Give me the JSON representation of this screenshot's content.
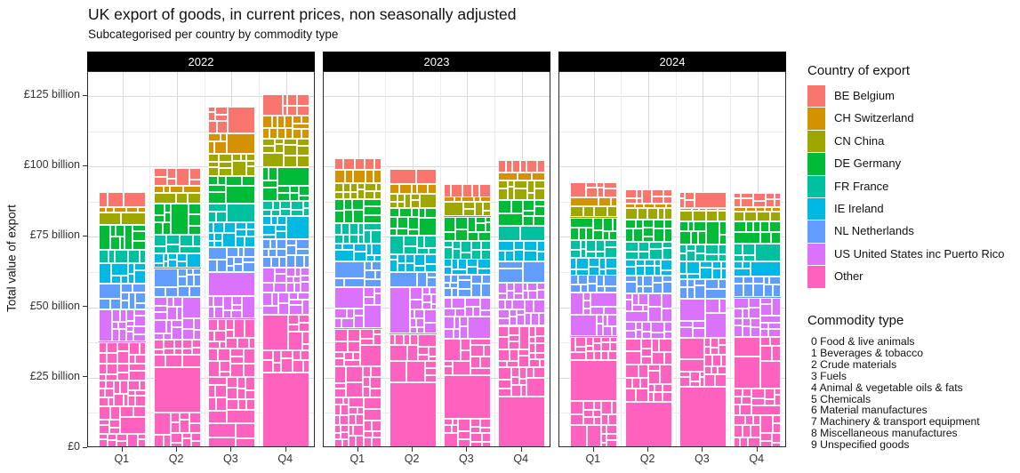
{
  "chart": {
    "title": "UK export of goods, in current prices, non seasonally adjusted",
    "subtitle": "Subcategorised per country by commodity type",
    "y_axis": {
      "title": "Total value of export",
      "tick_labels": [
        "£0",
        "£25 billion",
        "£50 billion",
        "£75 billion",
        "£100 billion",
        "£125 billion"
      ],
      "tick_values": [
        0,
        25,
        50,
        75,
        100,
        125
      ]
    },
    "x_axis": {
      "tick_labels": [
        "Q1",
        "Q2",
        "Q3",
        "Q4"
      ]
    },
    "facet_labels": [
      "2022",
      "2023",
      "2024"
    ],
    "legend_country": {
      "title": "Country of export",
      "entries": [
        {
          "label": "BE Belgium",
          "color": "#F8766D"
        },
        {
          "label": "CH Switzerland",
          "color": "#D39200"
        },
        {
          "label": "CN China",
          "color": "#9DA700"
        },
        {
          "label": "DE Germany",
          "color": "#00BA38"
        },
        {
          "label": "FR France",
          "color": "#00C19F"
        },
        {
          "label": "IE Ireland",
          "color": "#00B9E3"
        },
        {
          "label": "NL Netherlands",
          "color": "#619CFF"
        },
        {
          "label": "US United States inc Puerto Rico",
          "color": "#DB72FB"
        },
        {
          "label": "Other",
          "color": "#FF61BF"
        }
      ]
    },
    "legend_commodity": {
      "title": "Commodity type",
      "items": [
        "0 Food & live animals",
        "1 Beverages & tobacco",
        "2 Crude materials",
        "3 Fuels",
        "4 Animal & vegetable oils & fats",
        "5 Chemicals",
        "6 Material manufactures",
        "7 Machinery & transport equipment",
        "8 Miscellaneous manufactures",
        "9 Unspecified goods"
      ]
    }
  },
  "chart_data": {
    "type": "bar",
    "variant": "stacked-mosaic",
    "title": "UK export of goods, in current prices, non seasonally adjusted",
    "subtitle": "Subcategorised per country by commodity type",
    "ylabel": "Total value of export",
    "unit": "£ billion",
    "ylim": [
      0,
      133
    ],
    "grid": "major and minor, light grey on white panels",
    "legend_position": "right",
    "facets": [
      "2022",
      "2023",
      "2024"
    ],
    "categories": [
      "Q1",
      "Q2",
      "Q3",
      "Q4"
    ],
    "stack_order_bottom_to_top": [
      "Other",
      "US United States inc Puerto Rico",
      "NL Netherlands",
      "IE Ireland",
      "FR France",
      "DE Germany",
      "CN China",
      "CH Switzerland",
      "BE Belgium"
    ],
    "note": "Each country segment is subdivided horizontally into small tiles by commodity type (mosaic); tile widths are approximate shares, values below are country totals in £ billion, estimated from axis",
    "series": [
      {
        "name": "BE Belgium",
        "color": "#F8766D",
        "values": {
          "2022": [
            5.4,
            6.3,
            9.5,
            7.6
          ],
          "2023": [
            4.1,
            5.4,
            4.7,
            4.4
          ],
          "2024": [
            5.4,
            5.1,
            5.7,
            5.1
          ]
        }
      },
      {
        "name": "CH Switzerland",
        "color": "#D39200",
        "values": {
          "2022": [
            1.9,
            2.5,
            7.3,
            8.2
          ],
          "2023": [
            4.7,
            3.5,
            1.9,
            2.8
          ],
          "2024": [
            3.2,
            1.6,
            0.9,
            1.6
          ]
        }
      },
      {
        "name": "CN China",
        "color": "#9DA700",
        "values": {
          "2022": [
            4.4,
            3.8,
            7.9,
            10.1
          ],
          "2023": [
            5.7,
            5.1,
            5.1,
            7.0
          ],
          "2024": [
            3.8,
            4.1,
            3.8,
            3.5
          ]
        }
      },
      {
        "name": "DE Germany",
        "color": "#00BA38",
        "values": {
          "2022": [
            8.9,
            11.1,
            9.8,
            12.0
          ],
          "2023": [
            8.5,
            9.8,
            8.5,
            9.2
          ],
          "2024": [
            7.9,
            7.9,
            8.2,
            7.9
          ]
        }
      },
      {
        "name": "FR France",
        "color": "#00C19F",
        "values": {
          "2022": [
            4.7,
            6.6,
            6.6,
            5.4
          ],
          "2023": [
            7.3,
            6.6,
            6.6,
            5.4
          ],
          "2024": [
            6.3,
            6.3,
            6.0,
            6.3
          ]
        }
      },
      {
        "name": "IE Ireland",
        "color": "#00B9E3",
        "values": {
          "2022": [
            7.3,
            5.1,
            8.9,
            8.2
          ],
          "2023": [
            6.3,
            6.3,
            5.7,
            7.3
          ],
          "2024": [
            6.3,
            5.7,
            6.3,
            5.4
          ]
        }
      },
      {
        "name": "NL Netherlands",
        "color": "#619CFF",
        "values": {
          "2022": [
            9.2,
            10.1,
            8.9,
            10.1
          ],
          "2023": [
            9.2,
            5.4,
            7.9,
            7.6
          ],
          "2024": [
            6.3,
            6.3,
            7.0,
            7.3
          ]
        }
      },
      {
        "name": "US United States inc Puerto Rico",
        "color": "#DB72FB",
        "values": {
          "2022": [
            11.4,
            15.2,
            16.5,
            16.8
          ],
          "2023": [
            14.6,
            16.5,
            14.6,
            15.2
          ],
          "2024": [
            15.5,
            16.1,
            13.9,
            13.9
          ]
        }
      },
      {
        "name": "Other",
        "color": "#FF61BF",
        "values": {
          "2022": [
            37.7,
            38.6,
            45.9,
            47.2
          ],
          "2023": [
            42.4,
            40.5,
            38.9,
            43.4
          ],
          "2024": [
            39.6,
            38.9,
            39.2,
            39.6
          ]
        }
      }
    ],
    "totals": {
      "2022": [
        90.9,
        99.3,
        121.3,
        125.6
      ],
      "2023": [
        102.8,
        99.1,
        93.9,
        102.3
      ],
      "2024": [
        94.3,
        92.0,
        91.0,
        90.6
      ]
    }
  }
}
